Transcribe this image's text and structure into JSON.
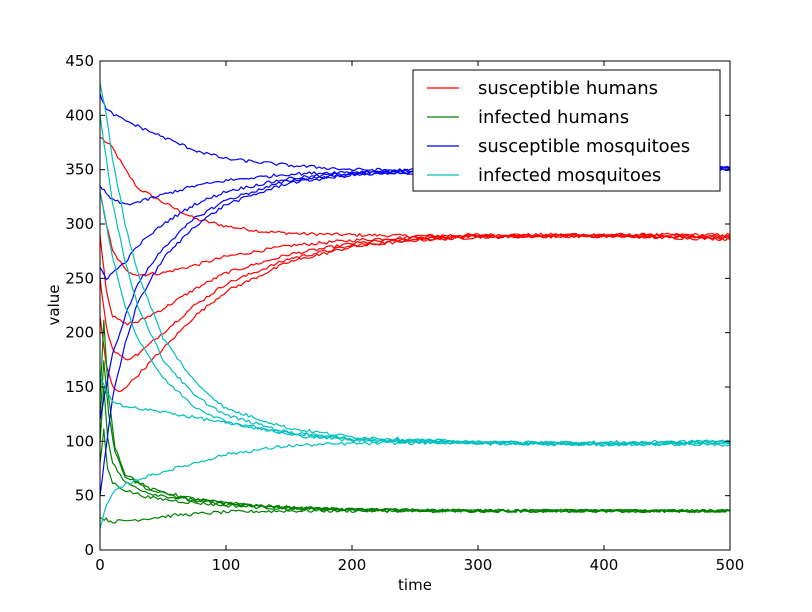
{
  "chart_data": {
    "type": "line",
    "title": "",
    "xlabel": "time",
    "ylabel": "value",
    "xlim": [
      0,
      500
    ],
    "ylim": [
      0,
      450
    ],
    "xticks": [
      0,
      100,
      200,
      300,
      400,
      500
    ],
    "yticks": [
      0,
      50,
      100,
      150,
      200,
      250,
      300,
      350,
      400,
      450
    ],
    "grid": false,
    "legend_position": "top-right",
    "legend": [
      {
        "label": "susceptible humans",
        "color": "#ff0000"
      },
      {
        "label": "infected humans",
        "color": "#008000"
      },
      {
        "label": "susceptible mosquitoes",
        "color": "#0000ff"
      },
      {
        "label": "infected mosquitoes",
        "color": "#00bfbf"
      }
    ],
    "series": [
      {
        "name": "susceptible humans",
        "color": "#ff0000",
        "values": [
          [
            0,
            380
          ],
          [
            10,
            370
          ],
          [
            20,
            350
          ],
          [
            30,
            333
          ],
          [
            50,
            320
          ],
          [
            75,
            305
          ],
          [
            100,
            298
          ],
          [
            130,
            293
          ],
          [
            160,
            291
          ],
          [
            200,
            290
          ],
          [
            250,
            289
          ],
          [
            300,
            290
          ],
          [
            400,
            290
          ],
          [
            500,
            290
          ]
        ]
      },
      {
        "name": "susceptible humans",
        "color": "#ff0000",
        "values": [
          [
            0,
            330
          ],
          [
            5,
            300
          ],
          [
            10,
            275
          ],
          [
            20,
            258
          ],
          [
            30,
            253
          ],
          [
            50,
            255
          ],
          [
            75,
            262
          ],
          [
            100,
            270
          ],
          [
            150,
            280
          ],
          [
            200,
            285
          ],
          [
            250,
            288
          ],
          [
            300,
            289
          ],
          [
            400,
            290
          ],
          [
            500,
            289
          ]
        ]
      },
      {
        "name": "susceptible humans",
        "color": "#ff0000",
        "values": [
          [
            0,
            290
          ],
          [
            5,
            240
          ],
          [
            10,
            215
          ],
          [
            20,
            208
          ],
          [
            30,
            210
          ],
          [
            50,
            222
          ],
          [
            75,
            240
          ],
          [
            100,
            255
          ],
          [
            150,
            272
          ],
          [
            200,
            282
          ],
          [
            250,
            287
          ],
          [
            300,
            289
          ],
          [
            400,
            289
          ],
          [
            500,
            288
          ]
        ]
      },
      {
        "name": "susceptible humans",
        "color": "#ff0000",
        "values": [
          [
            0,
            250
          ],
          [
            5,
            205
          ],
          [
            10,
            185
          ],
          [
            20,
            175
          ],
          [
            30,
            180
          ],
          [
            50,
            200
          ],
          [
            75,
            225
          ],
          [
            100,
            245
          ],
          [
            150,
            268
          ],
          [
            200,
            280
          ],
          [
            250,
            286
          ],
          [
            300,
            288
          ],
          [
            400,
            289
          ],
          [
            500,
            287
          ]
        ]
      },
      {
        "name": "susceptible humans",
        "color": "#ff0000",
        "values": [
          [
            0,
            215
          ],
          [
            5,
            170
          ],
          [
            10,
            150
          ],
          [
            15,
            145
          ],
          [
            25,
            155
          ],
          [
            50,
            185
          ],
          [
            75,
            215
          ],
          [
            100,
            238
          ],
          [
            150,
            265
          ],
          [
            200,
            279
          ],
          [
            250,
            285
          ],
          [
            300,
            288
          ],
          [
            400,
            289
          ],
          [
            500,
            286
          ]
        ]
      },
      {
        "name": "infected humans",
        "color": "#008000",
        "values": [
          [
            0,
            30
          ],
          [
            5,
            28
          ],
          [
            10,
            26
          ],
          [
            30,
            28
          ],
          [
            60,
            32
          ],
          [
            100,
            35
          ],
          [
            150,
            36
          ],
          [
            200,
            36
          ],
          [
            300,
            36
          ],
          [
            500,
            36
          ]
        ]
      },
      {
        "name": "infected humans",
        "color": "#008000",
        "values": [
          [
            0,
            80
          ],
          [
            3,
            110
          ],
          [
            6,
            75
          ],
          [
            10,
            62
          ],
          [
            20,
            55
          ],
          [
            40,
            48
          ],
          [
            70,
            44
          ],
          [
            100,
            41
          ],
          [
            150,
            38
          ],
          [
            200,
            37
          ],
          [
            300,
            36
          ],
          [
            500,
            36
          ]
        ]
      },
      {
        "name": "infected humans",
        "color": "#008000",
        "values": [
          [
            0,
            100
          ],
          [
            3,
            150
          ],
          [
            6,
            105
          ],
          [
            10,
            80
          ],
          [
            20,
            62
          ],
          [
            40,
            52
          ],
          [
            70,
            46
          ],
          [
            100,
            42
          ],
          [
            150,
            39
          ],
          [
            200,
            37
          ],
          [
            300,
            36
          ],
          [
            500,
            36
          ]
        ]
      },
      {
        "name": "infected humans",
        "color": "#008000",
        "values": [
          [
            0,
            120
          ],
          [
            3,
            175
          ],
          [
            7,
            125
          ],
          [
            12,
            90
          ],
          [
            20,
            68
          ],
          [
            40,
            55
          ],
          [
            70,
            47
          ],
          [
            100,
            43
          ],
          [
            150,
            39
          ],
          [
            200,
            37
          ],
          [
            300,
            36
          ],
          [
            500,
            36
          ]
        ]
      },
      {
        "name": "infected humans",
        "color": "#008000",
        "values": [
          [
            0,
            140
          ],
          [
            3,
            210
          ],
          [
            7,
            140
          ],
          [
            12,
            95
          ],
          [
            20,
            70
          ],
          [
            40,
            56
          ],
          [
            70,
            48
          ],
          [
            100,
            43
          ],
          [
            150,
            39
          ],
          [
            200,
            37
          ],
          [
            300,
            36
          ],
          [
            500,
            36
          ]
        ]
      },
      {
        "name": "susceptible mosquitoes",
        "color": "#0000ff",
        "values": [
          [
            0,
            420
          ],
          [
            5,
            405
          ],
          [
            15,
            398
          ],
          [
            30,
            390
          ],
          [
            50,
            380
          ],
          [
            75,
            368
          ],
          [
            100,
            360
          ],
          [
            150,
            354
          ],
          [
            200,
            350
          ],
          [
            300,
            349
          ],
          [
            400,
            350
          ],
          [
            500,
            352
          ]
        ]
      },
      {
        "name": "susceptible mosquitoes",
        "color": "#0000ff",
        "values": [
          [
            0,
            335
          ],
          [
            5,
            328
          ],
          [
            10,
            322
          ],
          [
            20,
            318
          ],
          [
            30,
            320
          ],
          [
            50,
            327
          ],
          [
            75,
            335
          ],
          [
            100,
            340
          ],
          [
            150,
            346
          ],
          [
            200,
            348
          ],
          [
            300,
            350
          ],
          [
            400,
            350
          ],
          [
            500,
            351
          ]
        ]
      },
      {
        "name": "susceptible mosquitoes",
        "color": "#0000ff",
        "values": [
          [
            0,
            260
          ],
          [
            5,
            250
          ],
          [
            10,
            255
          ],
          [
            20,
            265
          ],
          [
            30,
            280
          ],
          [
            50,
            300
          ],
          [
            75,
            318
          ],
          [
            100,
            330
          ],
          [
            150,
            342
          ],
          [
            200,
            347
          ],
          [
            300,
            349
          ],
          [
            400,
            350
          ],
          [
            500,
            352
          ]
        ]
      },
      {
        "name": "susceptible mosquitoes",
        "color": "#0000ff",
        "values": [
          [
            0,
            120
          ],
          [
            5,
            150
          ],
          [
            10,
            180
          ],
          [
            20,
            215
          ],
          [
            30,
            245
          ],
          [
            50,
            278
          ],
          [
            75,
            305
          ],
          [
            100,
            322
          ],
          [
            150,
            340
          ],
          [
            200,
            346
          ],
          [
            300,
            349
          ],
          [
            400,
            350
          ],
          [
            500,
            350
          ]
        ]
      },
      {
        "name": "susceptible mosquitoes",
        "color": "#0000ff",
        "values": [
          [
            0,
            50
          ],
          [
            5,
            95
          ],
          [
            10,
            140
          ],
          [
            20,
            190
          ],
          [
            30,
            228
          ],
          [
            50,
            268
          ],
          [
            75,
            298
          ],
          [
            100,
            318
          ],
          [
            150,
            338
          ],
          [
            200,
            345
          ],
          [
            300,
            349
          ],
          [
            400,
            350
          ],
          [
            500,
            351
          ]
        ]
      },
      {
        "name": "infected mosquitoes",
        "color": "#00bfbf",
        "values": [
          [
            0,
            430
          ],
          [
            5,
            400
          ],
          [
            10,
            360
          ],
          [
            20,
            300
          ],
          [
            30,
            255
          ],
          [
            50,
            195
          ],
          [
            75,
            155
          ],
          [
            100,
            130
          ],
          [
            150,
            112
          ],
          [
            200,
            104
          ],
          [
            300,
            99
          ],
          [
            400,
            98
          ],
          [
            500,
            100
          ]
        ]
      },
      {
        "name": "infected mosquitoes",
        "color": "#00bfbf",
        "values": [
          [
            0,
            400
          ],
          [
            5,
            360
          ],
          [
            10,
            320
          ],
          [
            20,
            265
          ],
          [
            30,
            225
          ],
          [
            50,
            175
          ],
          [
            75,
            142
          ],
          [
            100,
            124
          ],
          [
            150,
            108
          ],
          [
            200,
            102
          ],
          [
            300,
            99
          ],
          [
            400,
            97
          ],
          [
            500,
            99
          ]
        ]
      },
      {
        "name": "infected mosquitoes",
        "color": "#00bfbf",
        "values": [
          [
            0,
            330
          ],
          [
            5,
            300
          ],
          [
            10,
            268
          ],
          [
            20,
            225
          ],
          [
            30,
            195
          ],
          [
            50,
            158
          ],
          [
            75,
            132
          ],
          [
            100,
            118
          ],
          [
            150,
            106
          ],
          [
            200,
            101
          ],
          [
            300,
            98
          ],
          [
            400,
            97
          ],
          [
            500,
            98
          ]
        ]
      },
      {
        "name": "infected mosquitoes",
        "color": "#00bfbf",
        "values": [
          [
            0,
            160
          ],
          [
            5,
            145
          ],
          [
            10,
            138
          ],
          [
            20,
            132
          ],
          [
            30,
            130
          ],
          [
            50,
            127
          ],
          [
            75,
            122
          ],
          [
            100,
            117
          ],
          [
            150,
            108
          ],
          [
            200,
            102
          ],
          [
            300,
            99
          ],
          [
            400,
            98
          ],
          [
            500,
            97
          ]
        ]
      },
      {
        "name": "infected mosquitoes",
        "color": "#00bfbf",
        "values": [
          [
            0,
            20
          ],
          [
            5,
            40
          ],
          [
            10,
            52
          ],
          [
            20,
            60
          ],
          [
            30,
            65
          ],
          [
            50,
            72
          ],
          [
            75,
            80
          ],
          [
            100,
            88
          ],
          [
            150,
            96
          ],
          [
            200,
            98
          ],
          [
            300,
            99
          ],
          [
            400,
            99
          ],
          [
            500,
            100
          ]
        ]
      }
    ]
  }
}
